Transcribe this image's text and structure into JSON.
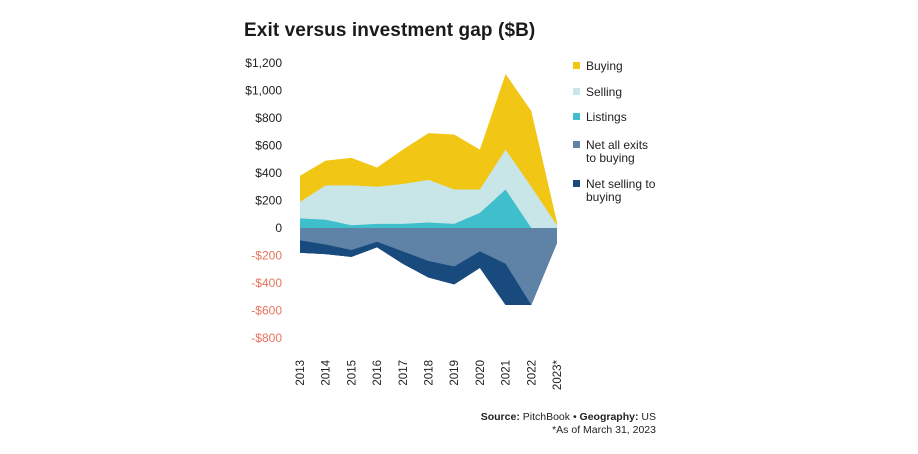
{
  "chart_data": {
    "type": "area",
    "title": "Exit versus investment gap ($B)",
    "categories": [
      "2013",
      "2014",
      "2015",
      "2016",
      "2017",
      "2018",
      "2019",
      "2020",
      "2021",
      "2022",
      "2023*"
    ],
    "ylim": [
      -800,
      1200
    ],
    "yticks": [
      1200,
      1000,
      800,
      600,
      400,
      200,
      0,
      -200,
      -400,
      -600,
      -800
    ],
    "ytick_labels": [
      "$1,200",
      "$1,000",
      "$800",
      "$600",
      "$400",
      "$200",
      "0",
      "-$200",
      "-$400",
      "-$600",
      "-$800"
    ],
    "series": [
      {
        "name": "Buying",
        "values": [
          380,
          490,
          510,
          440,
          570,
          690,
          680,
          570,
          1120,
          850,
          40
        ]
      },
      {
        "name": "Selling",
        "values": [
          190,
          310,
          310,
          300,
          320,
          350,
          280,
          280,
          570,
          300,
          20
        ]
      },
      {
        "name": "Listings",
        "values": [
          70,
          60,
          20,
          30,
          30,
          40,
          30,
          110,
          280,
          0,
          0
        ]
      },
      {
        "name": "Net all exits to buying",
        "values": [
          -90,
          -120,
          -160,
          -100,
          -170,
          -240,
          -280,
          -170,
          -260,
          -560,
          -110
        ]
      },
      {
        "name": "Net selling to buying",
        "values": [
          -180,
          -190,
          -210,
          -140,
          -260,
          -360,
          -410,
          -290,
          -560,
          -560,
          -110
        ]
      }
    ],
    "colors": {
      "Buying": "#f2c614",
      "Selling": "#c8e6e8",
      "Listings": "#3ebfcb",
      "Net all exits to buying": "#5f82a7",
      "Net selling to buying": "#184a7d",
      "negative_tick": "#e8735f",
      "positive_tick": "#222222"
    },
    "legend_position": "right",
    "grid": false
  },
  "legend": {
    "buying": "Buying",
    "selling": "Selling",
    "listings": "Listings",
    "net_all_exits_1": "Net all exits",
    "net_all_exits_2": "to buying",
    "net_selling_1": "Net selling to",
    "net_selling_2": "buying"
  },
  "footer": {
    "source_label": "Source:",
    "source_value": "PitchBook",
    "separator": "•",
    "geo_label": "Geography:",
    "geo_value": "US",
    "note": "*As of March 31, 2023"
  }
}
